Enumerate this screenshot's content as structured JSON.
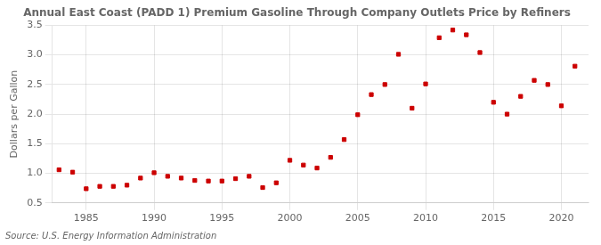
{
  "chart_data": {
    "type": "scatter",
    "title": "Annual East Coast (PADD 1) Premium Gasoline Through Company Outlets Price by Refiners",
    "y_label": "Dollars per Gallon",
    "source": "Source: U.S. Energy Information Administration",
    "x": [
      1983,
      1984,
      1985,
      1986,
      1987,
      1988,
      1989,
      1990,
      1991,
      1992,
      1993,
      1994,
      1995,
      1996,
      1997,
      1998,
      1999,
      2000,
      2001,
      2002,
      2003,
      2004,
      2005,
      2006,
      2007,
      2008,
      2009,
      2010,
      2011,
      2012,
      2013,
      2014,
      2015,
      2016,
      2017,
      2018,
      2019,
      2020,
      2021
    ],
    "values": [
      1.06,
      1.02,
      0.74,
      0.78,
      0.78,
      0.8,
      0.92,
      1.01,
      0.95,
      0.92,
      0.88,
      0.87,
      0.87,
      0.91,
      0.95,
      0.76,
      0.84,
      1.22,
      1.14,
      1.09,
      1.27,
      1.57,
      1.99,
      2.33,
      2.5,
      3.01,
      2.1,
      2.51,
      3.29,
      3.42,
      3.34,
      3.04,
      2.2,
      2.0,
      2.3,
      2.57,
      2.5,
      2.14,
      2.81
    ],
    "color": "#cc0000",
    "marker": "square",
    "xlim": [
      1982.5,
      2022
    ],
    "xticks": [
      1985,
      1990,
      1995,
      2000,
      2005,
      2010,
      2015,
      2020
    ],
    "ylim": [
      0.5,
      3.5
    ],
    "yticks": [
      0.5,
      {
        "value": 1.0,
        "label": "1.0"
      },
      1.5,
      {
        "value": 2.0,
        "label": "2.0"
      },
      2.5,
      {
        "value": 3.0,
        "label": "3.0"
      },
      3.5
    ],
    "grid": true
  }
}
